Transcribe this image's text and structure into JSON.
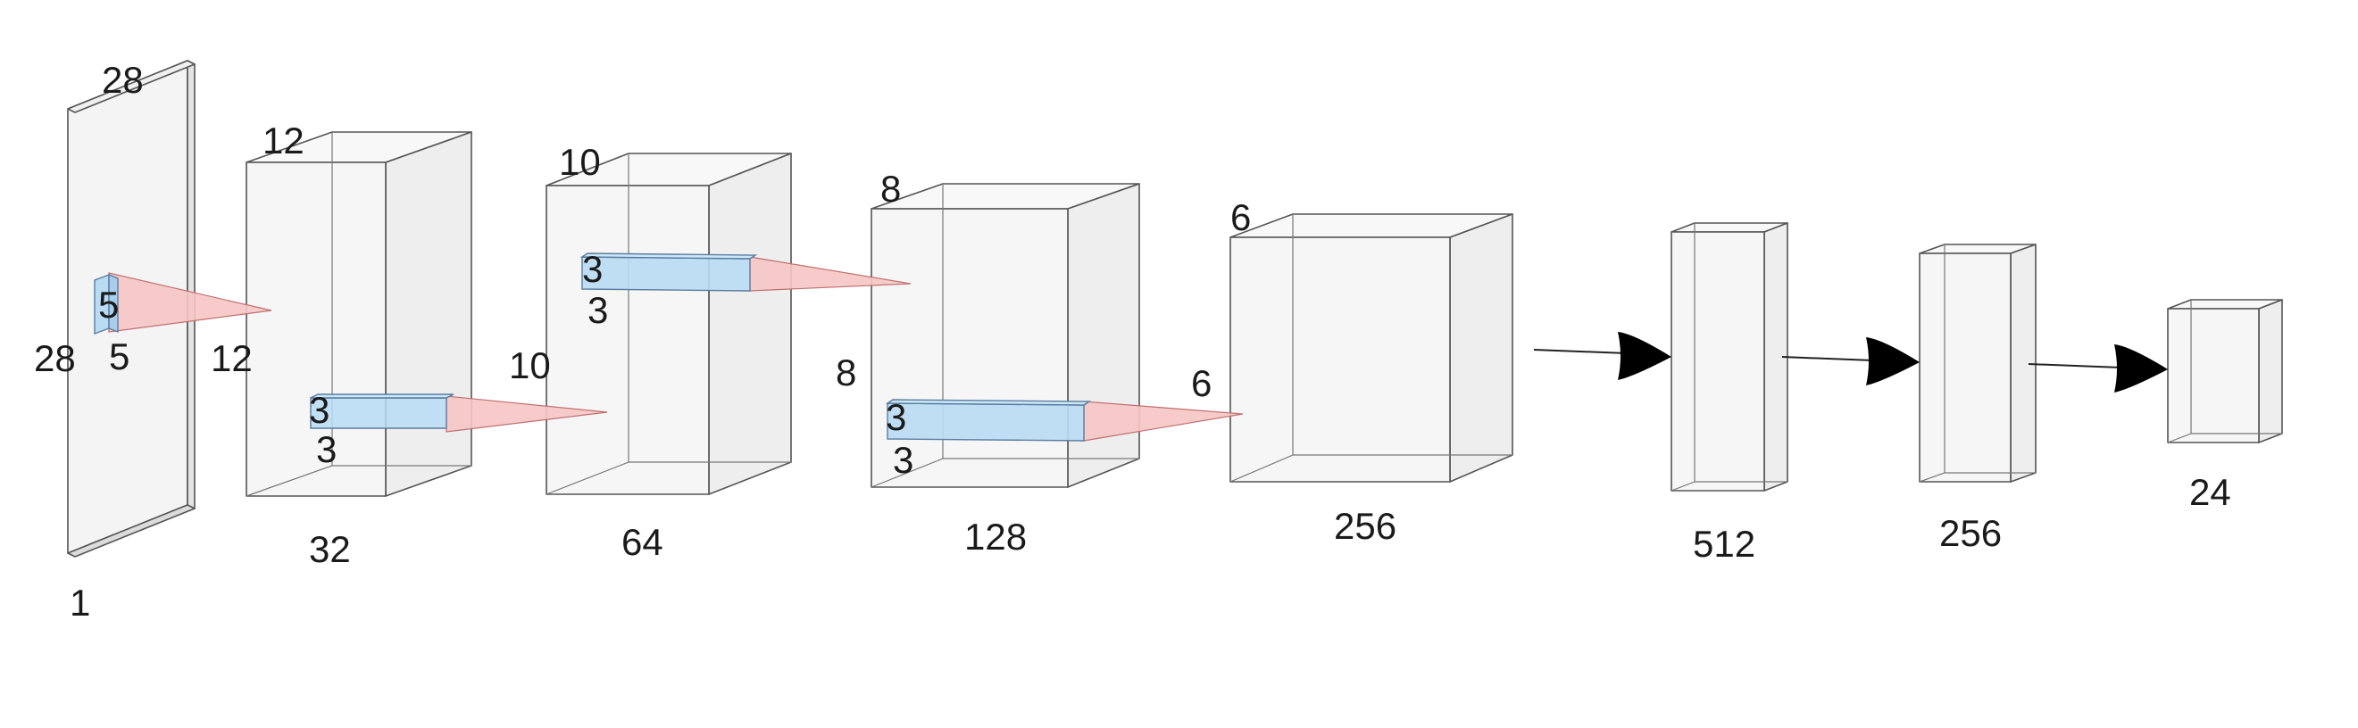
{
  "colors": {
    "box_front": "#f4f4f4",
    "box_side": "#ececec",
    "box_top": "#f8f8f8",
    "kernel_front": "#b9dcf4",
    "kernel_side": "#a7cfeb",
    "cone": "#f7c5c5",
    "arrow": "#000000"
  },
  "layers": [
    {
      "id": "input",
      "labels": {
        "width": "28",
        "height": "28",
        "depth": "1"
      }
    },
    {
      "id": "conv1",
      "labels": {
        "size": "12",
        "channels": "32"
      }
    },
    {
      "id": "conv2",
      "labels": {
        "size": "10",
        "channels": "64"
      }
    },
    {
      "id": "conv3",
      "labels": {
        "size": "8",
        "side": "8",
        "channels": "128"
      }
    },
    {
      "id": "conv4",
      "labels": {
        "size": "6",
        "channels": "256"
      }
    },
    {
      "id": "fc1",
      "labels": {
        "units": "512"
      }
    },
    {
      "id": "fc2",
      "labels": {
        "units": "256"
      }
    },
    {
      "id": "output",
      "labels": {
        "units": "24"
      }
    }
  ],
  "kernels": [
    {
      "id": "kernel1",
      "labels": {
        "h": "5",
        "w": "5"
      },
      "target_label": "12"
    },
    {
      "id": "kernel2",
      "labels": {
        "h": "3",
        "w": "3"
      },
      "target_label": "10"
    },
    {
      "id": "kernel3",
      "labels": {
        "h": "3",
        "w": "3"
      }
    },
    {
      "id": "kernel4",
      "labels": {
        "h": "3",
        "w": "3"
      },
      "target_label": "6"
    }
  ]
}
